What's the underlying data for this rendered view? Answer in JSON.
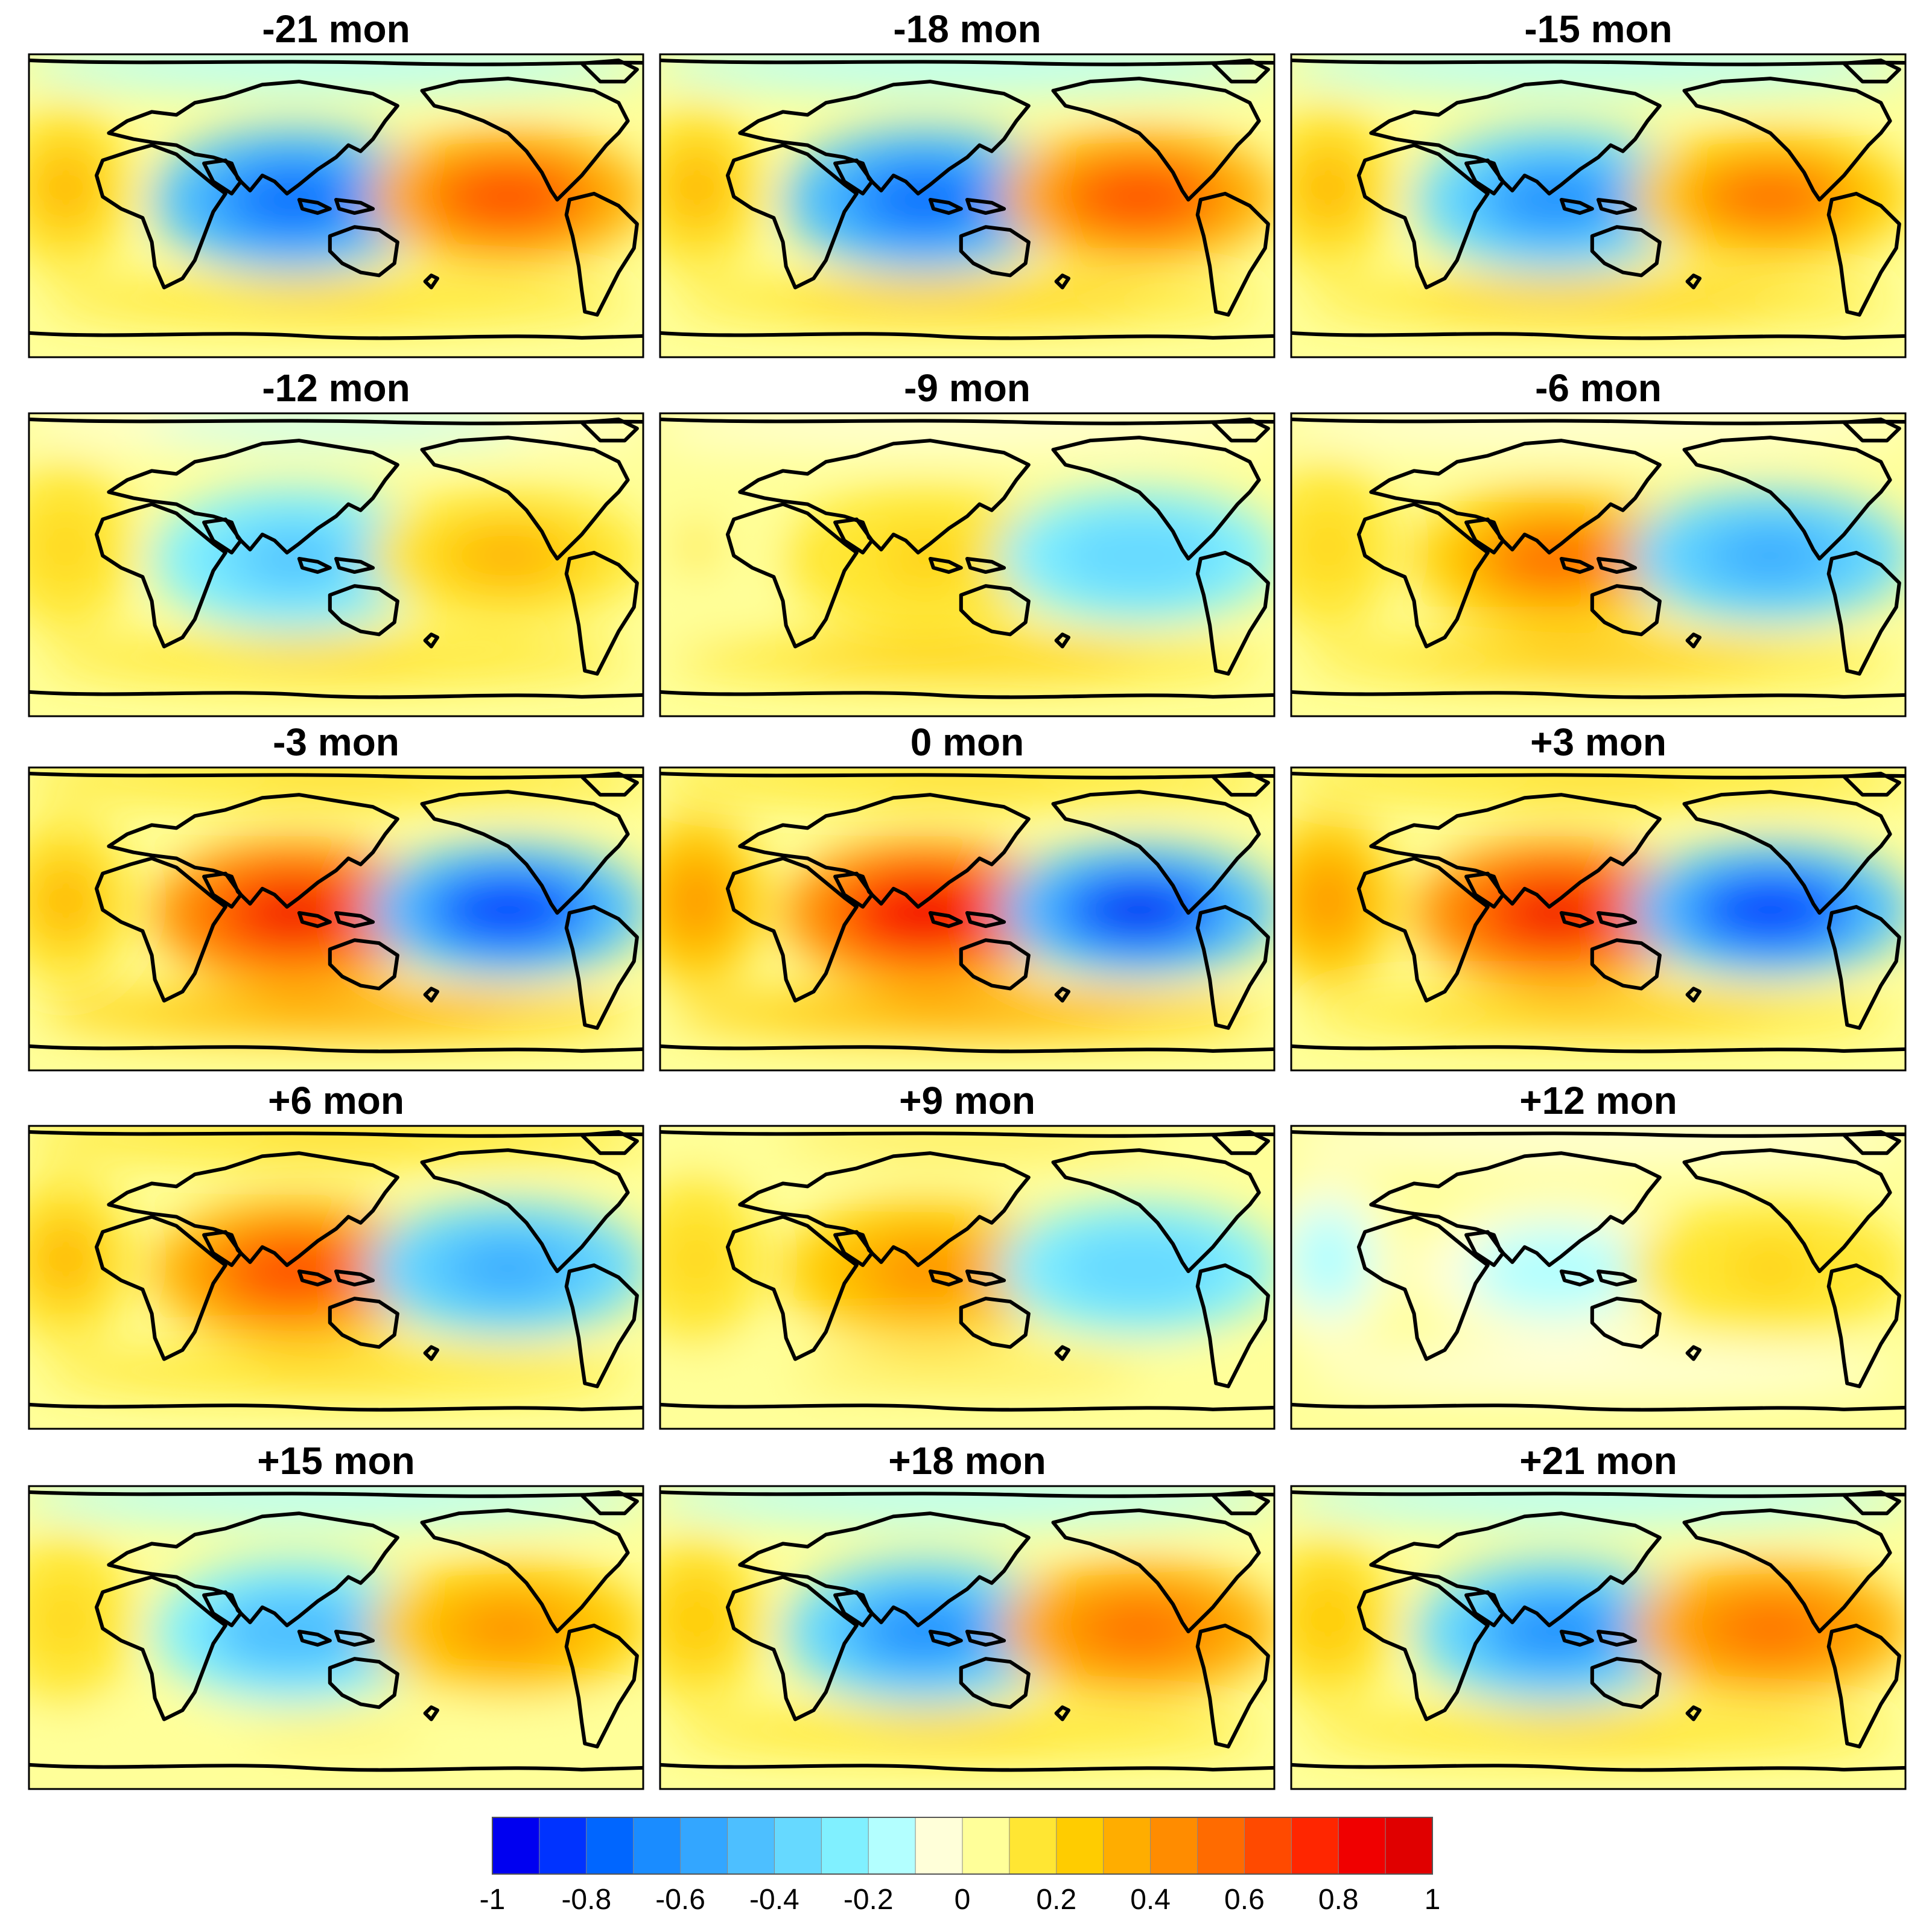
{
  "chart_data": {
    "type": "heatmap",
    "description_of_layout": "15 global map panels, 5 rows x 3 columns, shared colorbar",
    "variable_range": [
      -1,
      1
    ],
    "colorbar": {
      "min": -1,
      "max": 1,
      "step": 0.05,
      "tick_values": [
        -1,
        -0.8,
        -0.6,
        -0.4,
        -0.2,
        0,
        0.2,
        0.4,
        0.6,
        0.8,
        1
      ],
      "tick_labels": [
        "-1",
        "-0.8",
        "-0.6",
        "-0.4",
        "-0.2",
        "0",
        "0.2",
        "0.4",
        "0.6",
        "0.8",
        "1"
      ],
      "colors": [
        "#0000f0",
        "#0033ff",
        "#0066ff",
        "#1a8cff",
        "#33a6ff",
        "#4dbfff",
        "#66d9ff",
        "#80f0ff",
        "#b3ffff",
        "#ffffd9",
        "#ffff99",
        "#ffe633",
        "#ffcc00",
        "#ffad00",
        "#ff8c00",
        "#ff6b00",
        "#ff4a00",
        "#ff2600",
        "#f00000",
        "#e00000"
      ]
    },
    "panels": [
      {
        "title": "-21 mon",
        "lag": -21,
        "centers": {
          "indian_maritime": -0.75,
          "east_pacific": 0.65,
          "atlantic_subtropics": 0.3,
          "southern_band": 0.2,
          "polar": -0.2
        }
      },
      {
        "title": "-18 mon",
        "lag": -18,
        "centers": {
          "indian_maritime": -0.75,
          "east_pacific": 0.65,
          "atlantic_subtropics": 0.3,
          "southern_band": 0.25,
          "polar": -0.2
        }
      },
      {
        "title": "-15 mon",
        "lag": -15,
        "centers": {
          "indian_maritime": -0.65,
          "east_pacific": 0.5,
          "atlantic_subtropics": 0.3,
          "southern_band": 0.25,
          "polar": -0.2
        }
      },
      {
        "title": "-12 mon",
        "lag": -12,
        "centers": {
          "indian_maritime": -0.45,
          "east_pacific": 0.3,
          "atlantic_subtropics": 0.2,
          "southern_band": 0.2,
          "polar": -0.15
        }
      },
      {
        "title": "-9 mon",
        "lag": -9,
        "centers": {
          "indian_maritime": 0.2,
          "east_pacific": -0.4,
          "atlantic_subtropics": 0.1,
          "southern_band": 0.25,
          "polar": -0.1
        }
      },
      {
        "title": "-6 mon",
        "lag": -6,
        "centers": {
          "indian_maritime": 0.5,
          "east_pacific": -0.55,
          "atlantic_subtropics": 0.2,
          "southern_band": 0.3,
          "polar": -0.1
        }
      },
      {
        "title": "-3 mon",
        "lag": -3,
        "centers": {
          "indian_maritime": 0.8,
          "east_pacific": -0.85,
          "atlantic_subtropics": 0.35,
          "southern_band": 0.4,
          "polar": 0.2
        }
      },
      {
        "title": "0 mon",
        "lag": 0,
        "centers": {
          "indian_maritime": 0.85,
          "east_pacific": -0.9,
          "atlantic_subtropics": 0.4,
          "southern_band": 0.4,
          "polar": 0.2
        }
      },
      {
        "title": "+3 mon",
        "lag": 3,
        "centers": {
          "indian_maritime": 0.8,
          "east_pacific": -0.85,
          "atlantic_subtropics": 0.4,
          "southern_band": 0.35,
          "polar": 0.2
        }
      },
      {
        "title": "+6 mon",
        "lag": 6,
        "centers": {
          "indian_maritime": 0.65,
          "east_pacific": -0.55,
          "atlantic_subtropics": 0.3,
          "southern_band": 0.2,
          "polar": 0.2
        }
      },
      {
        "title": "+9 mon",
        "lag": 9,
        "centers": {
          "indian_maritime": 0.45,
          "east_pacific": -0.4,
          "atlantic_subtropics": 0.2,
          "southern_band": 0.15,
          "polar": 0.15
        }
      },
      {
        "title": "+12 mon",
        "lag": 12,
        "centers": {
          "indian_maritime": -0.15,
          "east_pacific": 0.2,
          "atlantic_subtropics": -0.15,
          "southern_band": -0.1,
          "polar": -0.1
        }
      },
      {
        "title": "+15 mon",
        "lag": 15,
        "centers": {
          "indian_maritime": -0.5,
          "east_pacific": 0.45,
          "atlantic_subtropics": 0.2,
          "southern_band": 0.1,
          "polar": -0.2
        }
      },
      {
        "title": "+18 mon",
        "lag": 18,
        "centers": {
          "indian_maritime": -0.65,
          "east_pacific": 0.55,
          "atlantic_subtropics": 0.25,
          "southern_band": 0.2,
          "polar": -0.2
        }
      },
      {
        "title": "+21 mon",
        "lag": 21,
        "centers": {
          "indian_maritime": -0.65,
          "east_pacific": 0.55,
          "atlantic_subtropics": 0.25,
          "southern_band": 0.2,
          "polar": -0.2
        }
      }
    ]
  }
}
